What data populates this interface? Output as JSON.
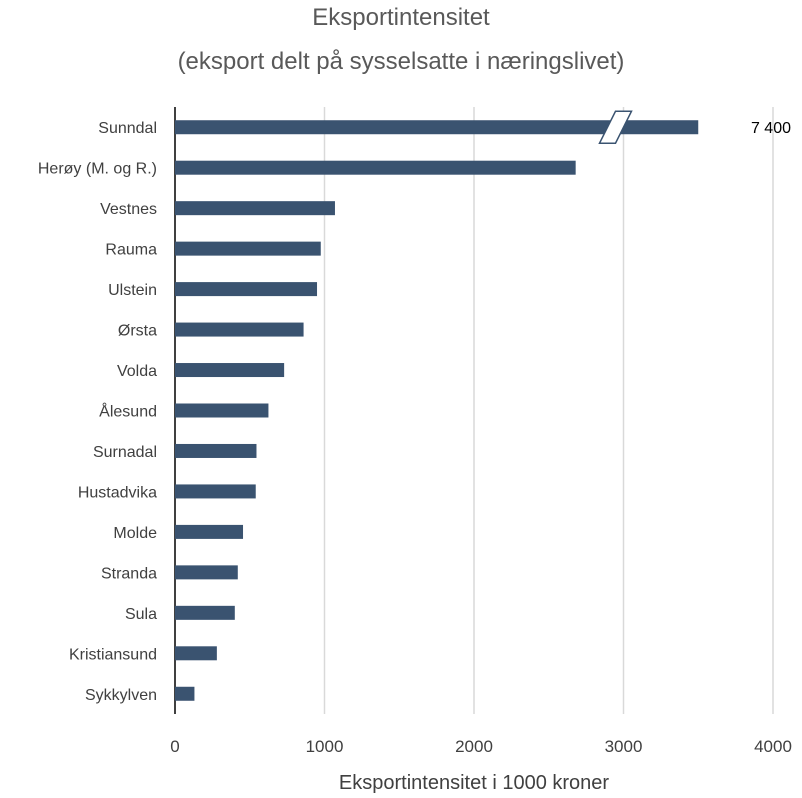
{
  "chart_data": {
    "type": "bar",
    "orientation": "horizontal",
    "title": "Eksportintensitet",
    "subtitle": "(eksport delt på sysselsatte i næringslivet)",
    "xlabel": "Eksportintensitet i 1000 kroner",
    "ylabel": "",
    "xlim": [
      0,
      4000
    ],
    "x_ticks": [
      "0",
      "1000",
      "2000",
      "3000",
      "4000"
    ],
    "grid": true,
    "legend": "none",
    "bar_color": "#3a5370",
    "categories": [
      "Sunndal",
      "Herøy (M. og R.)",
      "Vestnes",
      "Rauma",
      "Ulstein",
      "Ørsta",
      "Volda",
      "Ålesund",
      "Surnadal",
      "Hustadvika",
      "Molde",
      "Stranda",
      "Sula",
      "Kristiansund",
      "Sykkylven"
    ],
    "values": [
      7400,
      2680,
      1070,
      975,
      950,
      860,
      730,
      625,
      545,
      540,
      455,
      420,
      400,
      280,
      130
    ],
    "axis_break": {
      "category": "Sunndal",
      "break_at": 3000,
      "label": "7 400"
    }
  }
}
